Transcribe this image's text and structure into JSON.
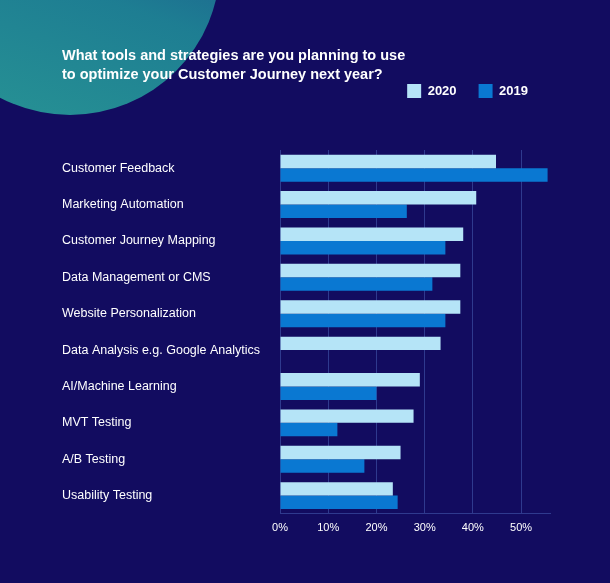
{
  "chart_data": {
    "type": "bar",
    "orientation": "horizontal",
    "title": [
      "What tools and strategies are you planning to use",
      "to optimize your Customer Journey next year?"
    ],
    "categories": [
      "Customer Feedback",
      "Marketing Automation",
      "Customer Journey Mapping",
      "Data Management or CMS",
      "Website Personalization",
      "Data Analysis e.g. Google Analytics",
      "AI/Machine Learning",
      "MVT Testing",
      "A/B Testing",
      "Usability Testing"
    ],
    "series": [
      {
        "name": "2020",
        "color": "#b5e4f7",
        "values": [
          44.8,
          40.7,
          38,
          37.4,
          37.4,
          33.3,
          29,
          27.7,
          25,
          23.4
        ]
      },
      {
        "name": "2019",
        "color": "#0a78d2",
        "values": [
          55.5,
          26.3,
          34.3,
          31.6,
          34.3,
          null,
          20,
          11.9,
          17.5,
          24.4
        ]
      }
    ],
    "xlim": [
      0,
      56
    ],
    "xticks": [
      {
        "value": 0,
        "label": "0%"
      },
      {
        "value": 10,
        "label": "10%"
      },
      {
        "value": 20,
        "label": "20%"
      },
      {
        "value": 30,
        "label": "30%"
      },
      {
        "value": 40,
        "label": "40%"
      },
      {
        "value": 50,
        "label": "50%"
      }
    ],
    "grid": true,
    "legend": "top-right"
  }
}
